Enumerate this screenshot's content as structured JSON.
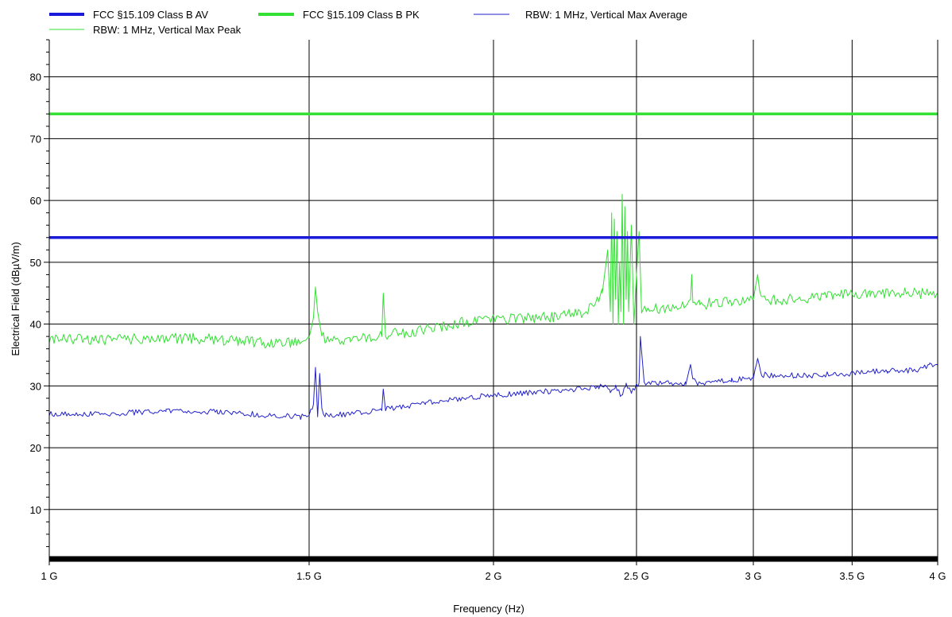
{
  "chart_data": {
    "type": "line",
    "title": "",
    "xlabel": "Frequency (Hz)",
    "ylabel": "Electrical Field (dBµV/m)",
    "x_scale": "log",
    "x_range_hz": [
      1000000000,
      4000000000
    ],
    "y_range": [
      2,
      86
    ],
    "grid": true,
    "x_ticks": [
      {
        "value": 1000000000,
        "label": "1 G"
      },
      {
        "value": 1500000000,
        "label": "1.5 G"
      },
      {
        "value": 2000000000,
        "label": "2 G"
      },
      {
        "value": 2500000000,
        "label": "2.5 G"
      },
      {
        "value": 3000000000,
        "label": "3 G"
      },
      {
        "value": 3500000000,
        "label": "3.5 G"
      },
      {
        "value": 4000000000,
        "label": "4 G"
      }
    ],
    "y_ticks": [
      {
        "value": 10,
        "label": "10"
      },
      {
        "value": 20,
        "label": "20"
      },
      {
        "value": 30,
        "label": "30"
      },
      {
        "value": 40,
        "label": "40"
      },
      {
        "value": 50,
        "label": "50"
      },
      {
        "value": 60,
        "label": "60"
      },
      {
        "value": 70,
        "label": "70"
      },
      {
        "value": 80,
        "label": "80"
      }
    ],
    "series": [
      {
        "name": "FCC §15.109 Class B AV",
        "color": "#1a1adb",
        "line": "limit",
        "x": [
          1000000000,
          4000000000
        ],
        "y": [
          54,
          54
        ]
      },
      {
        "name": "FCC §15.109 Class B PK",
        "color": "#33e033",
        "line": "limit",
        "x": [
          1000000000,
          4000000000
        ],
        "y": [
          74,
          74
        ]
      },
      {
        "name": "RBW: 1 MHz, Vertical Max Average",
        "color": "#2222cc",
        "line": "trace",
        "x": [
          1000000000,
          1100000000,
          1200000000,
          1300000000,
          1400000000,
          1480000000,
          1500000000,
          1510000000,
          1515000000,
          1520000000,
          1525000000,
          1530000000,
          1540000000,
          1600000000,
          1680000000,
          1684000000,
          1690000000,
          1800000000,
          1900000000,
          2000000000,
          2100000000,
          2200000000,
          2300000000,
          2380000000,
          2400000000,
          2420000000,
          2440000000,
          2460000000,
          2480000000,
          2500000000,
          2510000000,
          2515000000,
          2530000000,
          2600000000,
          2700000000,
          2720000000,
          2730000000,
          2760000000,
          2800000000,
          2900000000,
          3000000000,
          3020000000,
          3040000000,
          3100000000,
          3200000000,
          3300000000,
          3400000000,
          3500000000,
          3600000000,
          3700000000,
          3800000000,
          3900000000,
          3950000000,
          4000000000
        ],
        "y": [
          25.5,
          25.5,
          26,
          25.8,
          25.3,
          25,
          25.5,
          27,
          33,
          25,
          32,
          26,
          25.2,
          25.5,
          26,
          29.5,
          26.2,
          27.2,
          28,
          28.5,
          28.8,
          29.2,
          29.6,
          30,
          29,
          30,
          28.5,
          30,
          29,
          30,
          30.5,
          38,
          30.3,
          30.4,
          30.5,
          33.5,
          31,
          30.2,
          30.8,
          31,
          31.3,
          34,
          31.8,
          31.7,
          31.7,
          31.7,
          32,
          32,
          32.3,
          32.4,
          32.5,
          32.6,
          33.5,
          33
        ]
      },
      {
        "name": "RBW: 1 MHz, Vertical Max Peak",
        "color": "#33e033",
        "line": "trace",
        "x": [
          1000000000,
          1100000000,
          1200000000,
          1300000000,
          1400000000,
          1480000000,
          1500000000,
          1510000000,
          1515000000,
          1520000000,
          1530000000,
          1540000000,
          1600000000,
          1680000000,
          1684000000,
          1690000000,
          1800000000,
          1900000000,
          2000000000,
          2100000000,
          2200000000,
          2300000000,
          2340000000,
          2370000000,
          2390000000,
          2400000000,
          2405000000,
          2410000000,
          2415000000,
          2420000000,
          2425000000,
          2430000000,
          2435000000,
          2440000000,
          2445000000,
          2450000000,
          2455000000,
          2460000000,
          2465000000,
          2470000000,
          2480000000,
          2490000000,
          2500000000,
          2510000000,
          2520000000,
          2600000000,
          2680000000,
          2720000000,
          2725000000,
          2730000000,
          2760000000,
          2800000000,
          2900000000,
          3000000000,
          3020000000,
          3030000000,
          3060000000,
          3200000000,
          3400000000,
          3600000000,
          3800000000,
          4000000000
        ],
        "y": [
          37.5,
          37.5,
          37.8,
          37.5,
          37,
          37,
          37.8,
          41,
          46,
          42,
          38,
          37.5,
          37.5,
          38,
          45,
          38.2,
          39.2,
          40.2,
          40.8,
          41,
          41.2,
          41.8,
          43,
          45,
          52,
          42,
          58,
          40,
          57,
          44,
          55,
          40,
          50,
          42,
          61,
          40,
          59,
          44,
          55,
          42,
          56,
          40,
          48,
          55,
          42.5,
          42.5,
          43,
          44,
          48,
          44,
          43.2,
          43.3,
          43.5,
          44,
          48,
          44.5,
          43.8,
          44,
          44.5,
          45,
          45,
          45
        ]
      }
    ]
  }
}
